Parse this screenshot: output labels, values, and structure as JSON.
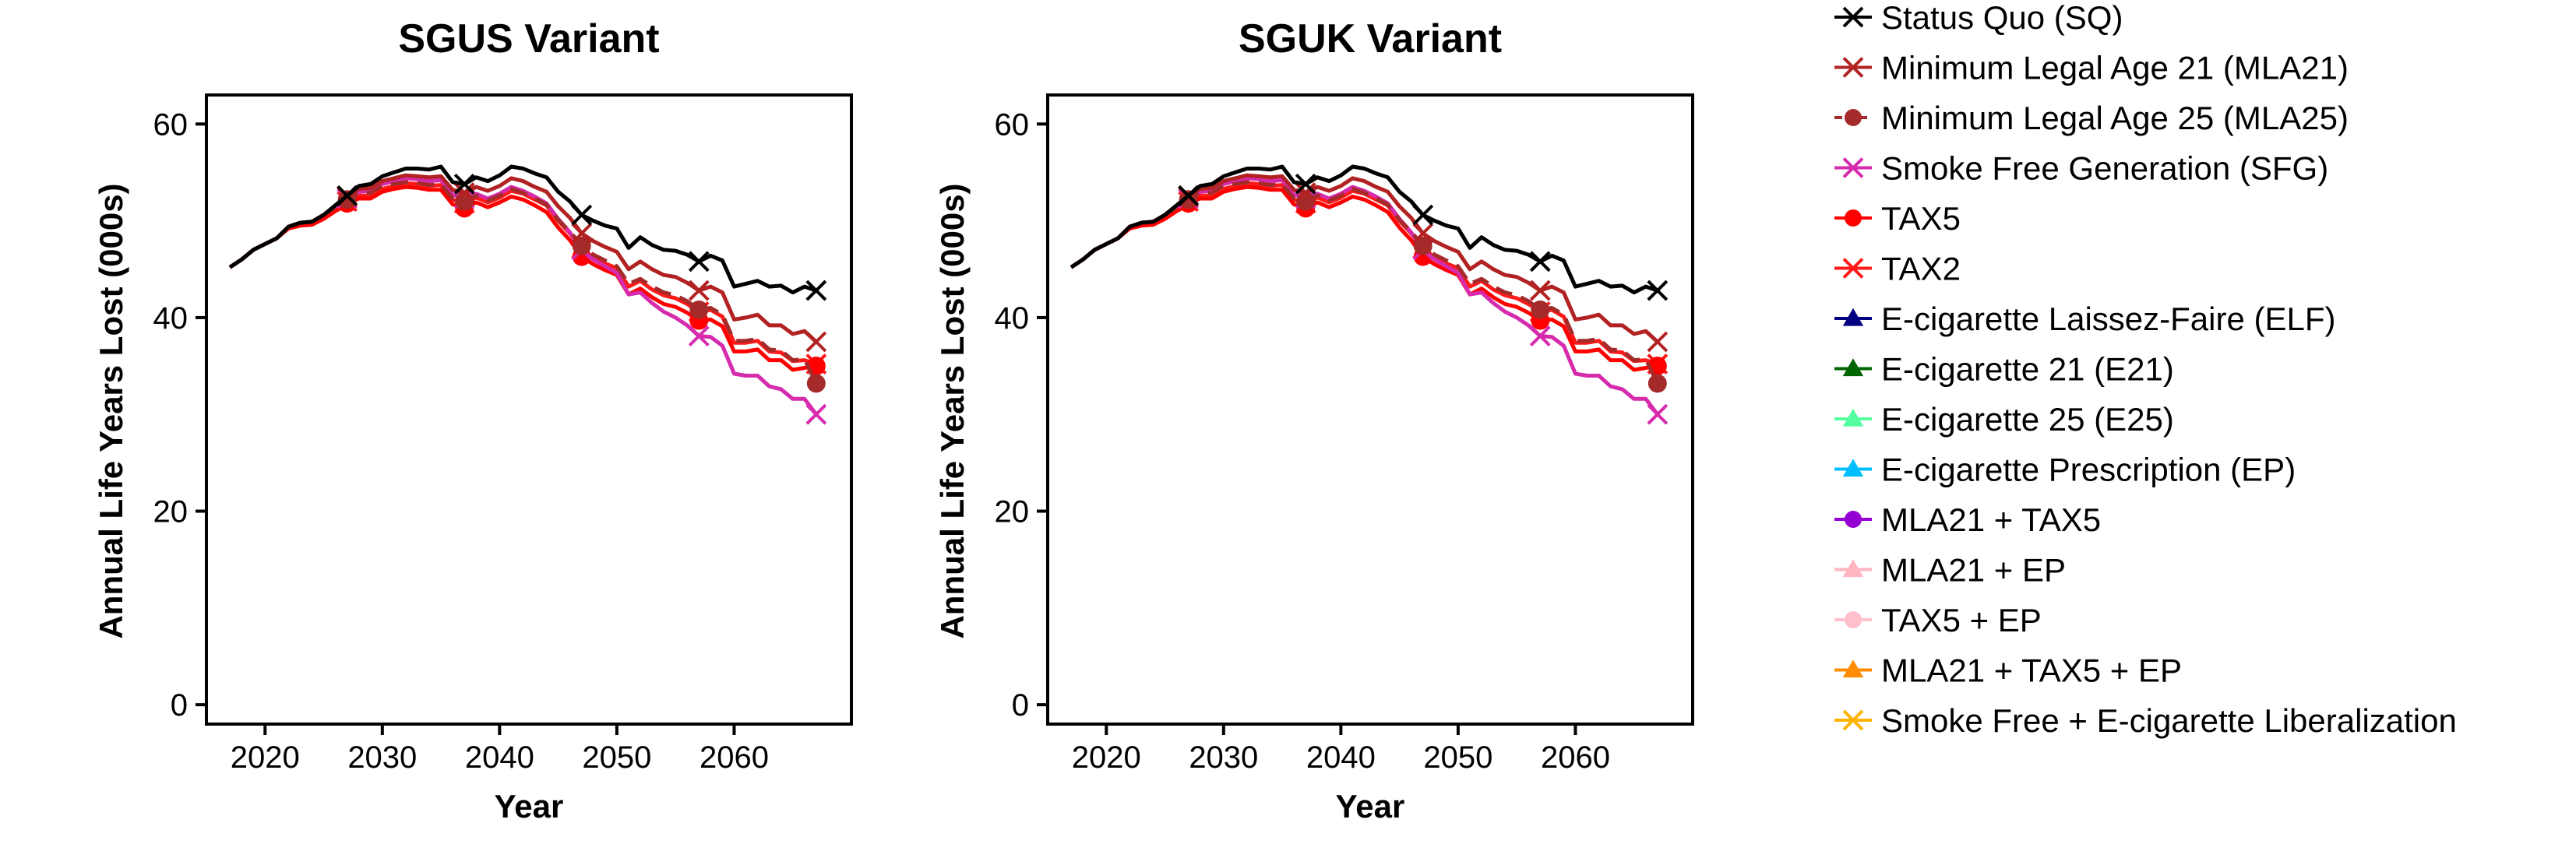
{
  "chart_data": [
    {
      "type": "line",
      "title": "SGUS Variant",
      "xlabel": "Year",
      "ylabel": "Annual Life Years Lost (000s)",
      "xlim": [
        2015,
        2070
      ],
      "ylim": [
        -2,
        63
      ],
      "xticks": [
        2020,
        2030,
        2040,
        2050,
        2060
      ],
      "yticks": [
        0,
        20,
        40,
        60
      ],
      "x": [
        2017,
        2018,
        2019,
        2020,
        2021,
        2022,
        2023,
        2024,
        2025,
        2026,
        2027,
        2028,
        2029,
        2030,
        2031,
        2032,
        2033,
        2034,
        2035,
        2036,
        2037,
        2038,
        2039,
        2040,
        2041,
        2042,
        2043,
        2044,
        2045,
        2046,
        2047,
        2048,
        2049,
        2050,
        2051,
        2052,
        2053,
        2054,
        2055,
        2056,
        2057,
        2058,
        2059,
        2060,
        2061,
        2062,
        2063,
        2064,
        2065,
        2066,
        2067
      ],
      "series": [
        {
          "name": "Status Quo (SQ)",
          "values": [
            45.2,
            46.0,
            47.0,
            47.6,
            48.2,
            49.4,
            49.8,
            49.9,
            50.6,
            51.6,
            52.6,
            53.6,
            53.8,
            54.6,
            55.0,
            55.4,
            55.4,
            55.3,
            55.6,
            54.0,
            53.8,
            54.5,
            54.1,
            54.7,
            55.6,
            55.4,
            54.9,
            54.5,
            53.0,
            52.0,
            50.6,
            50.0,
            49.5,
            49.2,
            47.2,
            48.3,
            47.5,
            47.0,
            46.9,
            46.5,
            45.8,
            46.4,
            45.9,
            43.2,
            43.5,
            43.8,
            43.2,
            43.3,
            42.6,
            43.2,
            42.8
          ]
        },
        {
          "name": "Minimum Legal Age 21 (MLA21)",
          "values": [
            45.2,
            46.0,
            47.0,
            47.6,
            48.2,
            49.4,
            49.8,
            49.9,
            50.6,
            51.6,
            52.5,
            53.3,
            53.4,
            54.1,
            54.4,
            54.7,
            54.6,
            54.5,
            54.6,
            53.2,
            52.9,
            53.5,
            53.1,
            53.6,
            54.4,
            54.1,
            53.5,
            53.0,
            51.5,
            50.3,
            48.7,
            47.9,
            47.3,
            46.8,
            45.0,
            45.8,
            45.0,
            44.4,
            44.2,
            43.6,
            42.8,
            43.2,
            42.6,
            39.8,
            40.0,
            40.3,
            39.2,
            39.2,
            38.3,
            38.6,
            37.5
          ]
        },
        {
          "name": "Minimum Legal Age 25 (MLA25)",
          "values": [
            45.2,
            46.0,
            47.0,
            47.6,
            48.2,
            49.4,
            49.8,
            49.9,
            50.6,
            51.4,
            52.2,
            52.9,
            52.9,
            53.6,
            53.8,
            54.0,
            53.9,
            53.7,
            53.8,
            52.3,
            52.0,
            52.6,
            52.1,
            52.6,
            53.3,
            52.9,
            52.3,
            51.7,
            50.1,
            48.9,
            47.4,
            46.5,
            45.9,
            45.3,
            43.5,
            44.0,
            43.2,
            42.6,
            42.3,
            41.7,
            40.8,
            41.0,
            40.3,
            37.6,
            37.6,
            37.8,
            36.7,
            36.6,
            35.6,
            35.7,
            33.2
          ]
        },
        {
          "name": "Smoke Free Generation (SFG)",
          "values": [
            45.2,
            46.0,
            47.0,
            47.6,
            48.2,
            49.4,
            49.8,
            49.9,
            50.6,
            51.5,
            52.3,
            53.0,
            53.1,
            53.8,
            54.1,
            54.4,
            54.3,
            54.1,
            54.2,
            52.7,
            52.3,
            52.8,
            52.3,
            52.8,
            53.5,
            53.1,
            52.5,
            51.8,
            50.2,
            48.8,
            47.0,
            46.0,
            45.3,
            44.6,
            42.4,
            42.6,
            41.5,
            40.6,
            40.0,
            39.2,
            38.1,
            38.0,
            37.1,
            34.2,
            34.0,
            34.0,
            32.9,
            32.6,
            31.6,
            31.6,
            30.0
          ]
        },
        {
          "name": "TAX5",
          "values": [
            45.2,
            46.0,
            47.0,
            47.6,
            48.2,
            49.2,
            49.5,
            49.6,
            50.2,
            51.0,
            51.8,
            52.3,
            52.3,
            53.0,
            53.3,
            53.5,
            53.4,
            53.2,
            53.2,
            51.7,
            51.3,
            51.9,
            51.4,
            51.9,
            52.5,
            52.2,
            51.6,
            50.9,
            49.3,
            48.0,
            46.3,
            45.5,
            44.9,
            44.4,
            42.4,
            43.0,
            42.1,
            41.4,
            41.1,
            40.5,
            39.7,
            39.8,
            39.1,
            36.5,
            36.5,
            36.7,
            35.6,
            35.6,
            34.6,
            34.8,
            35.0
          ]
        },
        {
          "name": "TAX2",
          "values": [
            45.2,
            46.0,
            47.0,
            47.6,
            48.2,
            49.3,
            49.6,
            49.7,
            50.3,
            51.2,
            52.0,
            52.6,
            52.6,
            53.3,
            53.6,
            53.9,
            53.8,
            53.6,
            53.7,
            52.2,
            51.8,
            52.4,
            51.9,
            52.4,
            53.1,
            52.8,
            52.2,
            51.6,
            50.0,
            48.7,
            47.1,
            46.2,
            45.6,
            45.1,
            43.2,
            43.8,
            42.9,
            42.3,
            42.0,
            41.4,
            40.6,
            40.8,
            40.1,
            37.4,
            37.4,
            37.6,
            36.5,
            36.4,
            35.5,
            35.6,
            35.2
          ]
        }
      ],
      "marker_years": [
        2027,
        2037,
        2047,
        2057,
        2067
      ]
    },
    {
      "type": "line",
      "title": "SGUK Variant",
      "xlabel": "Year",
      "ylabel": "Annual Life Years Lost (000s)",
      "xlim": [
        2015,
        2070
      ],
      "ylim": [
        -2,
        63
      ],
      "xticks": [
        2020,
        2030,
        2040,
        2050,
        2060
      ],
      "yticks": [
        0,
        20,
        40,
        60
      ],
      "x": [
        2017,
        2018,
        2019,
        2020,
        2021,
        2022,
        2023,
        2024,
        2025,
        2026,
        2027,
        2028,
        2029,
        2030,
        2031,
        2032,
        2033,
        2034,
        2035,
        2036,
        2037,
        2038,
        2039,
        2040,
        2041,
        2042,
        2043,
        2044,
        2045,
        2046,
        2047,
        2048,
        2049,
        2050,
        2051,
        2052,
        2053,
        2054,
        2055,
        2056,
        2057,
        2058,
        2059,
        2060,
        2061,
        2062,
        2063,
        2064,
        2065,
        2066,
        2067
      ],
      "series": [
        {
          "name": "Status Quo (SQ)",
          "values": [
            45.2,
            46.0,
            47.0,
            47.6,
            48.2,
            49.4,
            49.8,
            49.9,
            50.6,
            51.6,
            52.6,
            53.6,
            53.8,
            54.6,
            55.0,
            55.4,
            55.4,
            55.3,
            55.6,
            54.0,
            53.8,
            54.5,
            54.1,
            54.7,
            55.6,
            55.4,
            54.9,
            54.5,
            53.0,
            52.0,
            50.6,
            50.0,
            49.5,
            49.2,
            47.2,
            48.3,
            47.5,
            47.0,
            46.9,
            46.5,
            45.8,
            46.4,
            45.9,
            43.2,
            43.5,
            43.8,
            43.2,
            43.3,
            42.6,
            43.2,
            42.8
          ]
        },
        {
          "name": "Minimum Legal Age 21 (MLA21)",
          "values": [
            45.2,
            46.0,
            47.0,
            47.6,
            48.2,
            49.4,
            49.8,
            49.9,
            50.6,
            51.6,
            52.5,
            53.3,
            53.4,
            54.1,
            54.4,
            54.7,
            54.6,
            54.5,
            54.6,
            53.2,
            52.9,
            53.5,
            53.1,
            53.6,
            54.4,
            54.1,
            53.5,
            53.0,
            51.5,
            50.3,
            48.7,
            47.9,
            47.3,
            46.8,
            45.0,
            45.8,
            45.0,
            44.4,
            44.2,
            43.6,
            42.8,
            43.2,
            42.6,
            39.8,
            40.0,
            40.3,
            39.2,
            39.2,
            38.3,
            38.6,
            37.5
          ]
        },
        {
          "name": "Minimum Legal Age 25 (MLA25)",
          "values": [
            45.2,
            46.0,
            47.0,
            47.6,
            48.2,
            49.4,
            49.8,
            49.9,
            50.6,
            51.4,
            52.2,
            52.9,
            52.9,
            53.6,
            53.8,
            54.0,
            53.9,
            53.7,
            53.8,
            52.3,
            52.0,
            52.6,
            52.1,
            52.6,
            53.3,
            52.9,
            52.3,
            51.7,
            50.1,
            48.9,
            47.4,
            46.5,
            45.9,
            45.3,
            43.5,
            44.0,
            43.2,
            42.6,
            42.3,
            41.7,
            40.8,
            41.0,
            40.3,
            37.6,
            37.6,
            37.8,
            36.7,
            36.6,
            35.6,
            35.7,
            33.2
          ]
        },
        {
          "name": "Smoke Free Generation (SFG)",
          "values": [
            45.2,
            46.0,
            47.0,
            47.6,
            48.2,
            49.4,
            49.8,
            49.9,
            50.6,
            51.5,
            52.3,
            53.0,
            53.1,
            53.8,
            54.1,
            54.4,
            54.3,
            54.1,
            54.2,
            52.7,
            52.3,
            52.8,
            52.3,
            52.8,
            53.5,
            53.1,
            52.5,
            51.8,
            50.2,
            48.8,
            47.0,
            46.0,
            45.3,
            44.6,
            42.4,
            42.6,
            41.5,
            40.6,
            40.0,
            39.2,
            38.1,
            38.0,
            37.1,
            34.2,
            34.0,
            34.0,
            32.9,
            32.6,
            31.6,
            31.6,
            30.0
          ]
        },
        {
          "name": "TAX5",
          "values": [
            45.2,
            46.0,
            47.0,
            47.6,
            48.2,
            49.2,
            49.5,
            49.6,
            50.2,
            51.0,
            51.8,
            52.3,
            52.3,
            53.0,
            53.3,
            53.5,
            53.4,
            53.2,
            53.2,
            51.7,
            51.3,
            51.9,
            51.4,
            51.9,
            52.5,
            52.2,
            51.6,
            50.9,
            49.3,
            48.0,
            46.3,
            45.5,
            44.9,
            44.4,
            42.4,
            43.0,
            42.1,
            41.4,
            41.1,
            40.5,
            39.7,
            39.8,
            39.1,
            36.5,
            36.5,
            36.7,
            35.6,
            35.6,
            34.6,
            34.8,
            35.0
          ]
        },
        {
          "name": "TAX2",
          "values": [
            45.2,
            46.0,
            47.0,
            47.6,
            48.2,
            49.3,
            49.6,
            49.7,
            50.3,
            51.2,
            52.0,
            52.6,
            52.6,
            53.3,
            53.6,
            53.9,
            53.8,
            53.6,
            53.7,
            52.2,
            51.8,
            52.4,
            51.9,
            52.4,
            53.1,
            52.8,
            52.2,
            51.6,
            50.0,
            48.7,
            47.1,
            46.2,
            45.6,
            45.1,
            43.2,
            43.8,
            42.9,
            42.3,
            42.0,
            41.4,
            40.6,
            40.8,
            40.1,
            37.4,
            37.4,
            37.6,
            36.5,
            36.4,
            35.5,
            35.6,
            35.2
          ]
        }
      ],
      "marker_years": [
        2027,
        2037,
        2047,
        2057,
        2067
      ]
    }
  ],
  "legend": {
    "placement": "right",
    "items": [
      {
        "label": "Status Quo (SQ)",
        "color": "#000000",
        "shape": "x"
      },
      {
        "label": "Minimum Legal Age 21 (MLA21)",
        "color": "#B22222",
        "shape": "x"
      },
      {
        "label": "Minimum Legal Age 25 (MLA25)",
        "color": "#A52A2A",
        "shape": "circle",
        "dash": true
      },
      {
        "label": "Smoke Free Generation (SFG)",
        "color": "#D62BAD",
        "shape": "x"
      },
      {
        "label": "TAX5",
        "color": "#FF0000",
        "shape": "circle"
      },
      {
        "label": "TAX2",
        "color": "#FF1A1A",
        "shape": "x"
      },
      {
        "label": "E-cigarette Laissez-Faire (ELF)",
        "color": "#000080",
        "shape": "triangle"
      },
      {
        "label": "E-cigarette 21 (E21)",
        "color": "#006400",
        "shape": "triangle"
      },
      {
        "label": "E-cigarette 25 (E25)",
        "color": "#54FF9F",
        "shape": "triangle"
      },
      {
        "label": "E-cigarette Prescription (EP)",
        "color": "#00BFFF",
        "shape": "triangle"
      },
      {
        "label": "MLA21 + TAX5",
        "color": "#9400D3",
        "shape": "circle"
      },
      {
        "label": "MLA21 + EP",
        "color": "#FFB6C1",
        "shape": "triangle"
      },
      {
        "label": "TAX5 + EP",
        "color": "#FFC0CB",
        "shape": "circle"
      },
      {
        "label": "MLA21 + TAX5 + EP",
        "color": "#FF8C00",
        "shape": "triangle"
      },
      {
        "label": "Smoke Free + E-cigarette Liberalization",
        "color": "#FFB300",
        "shape": "x"
      }
    ]
  },
  "series_styles": {
    "Status Quo (SQ)": {
      "color": "#000000",
      "marker": "x",
      "dash": false
    },
    "Minimum Legal Age 21 (MLA21)": {
      "color": "#B22222",
      "marker": "x",
      "dash": false
    },
    "Minimum Legal Age 25 (MLA25)": {
      "color": "#A52A2A",
      "marker": "circle",
      "dash": true
    },
    "Smoke Free Generation (SFG)": {
      "color": "#D62BAD",
      "marker": "x",
      "dash": false
    },
    "TAX5": {
      "color": "#FF0000",
      "marker": "circle",
      "dash": false
    },
    "TAX2": {
      "color": "#FF1A1A",
      "marker": "x",
      "dash": false
    }
  }
}
